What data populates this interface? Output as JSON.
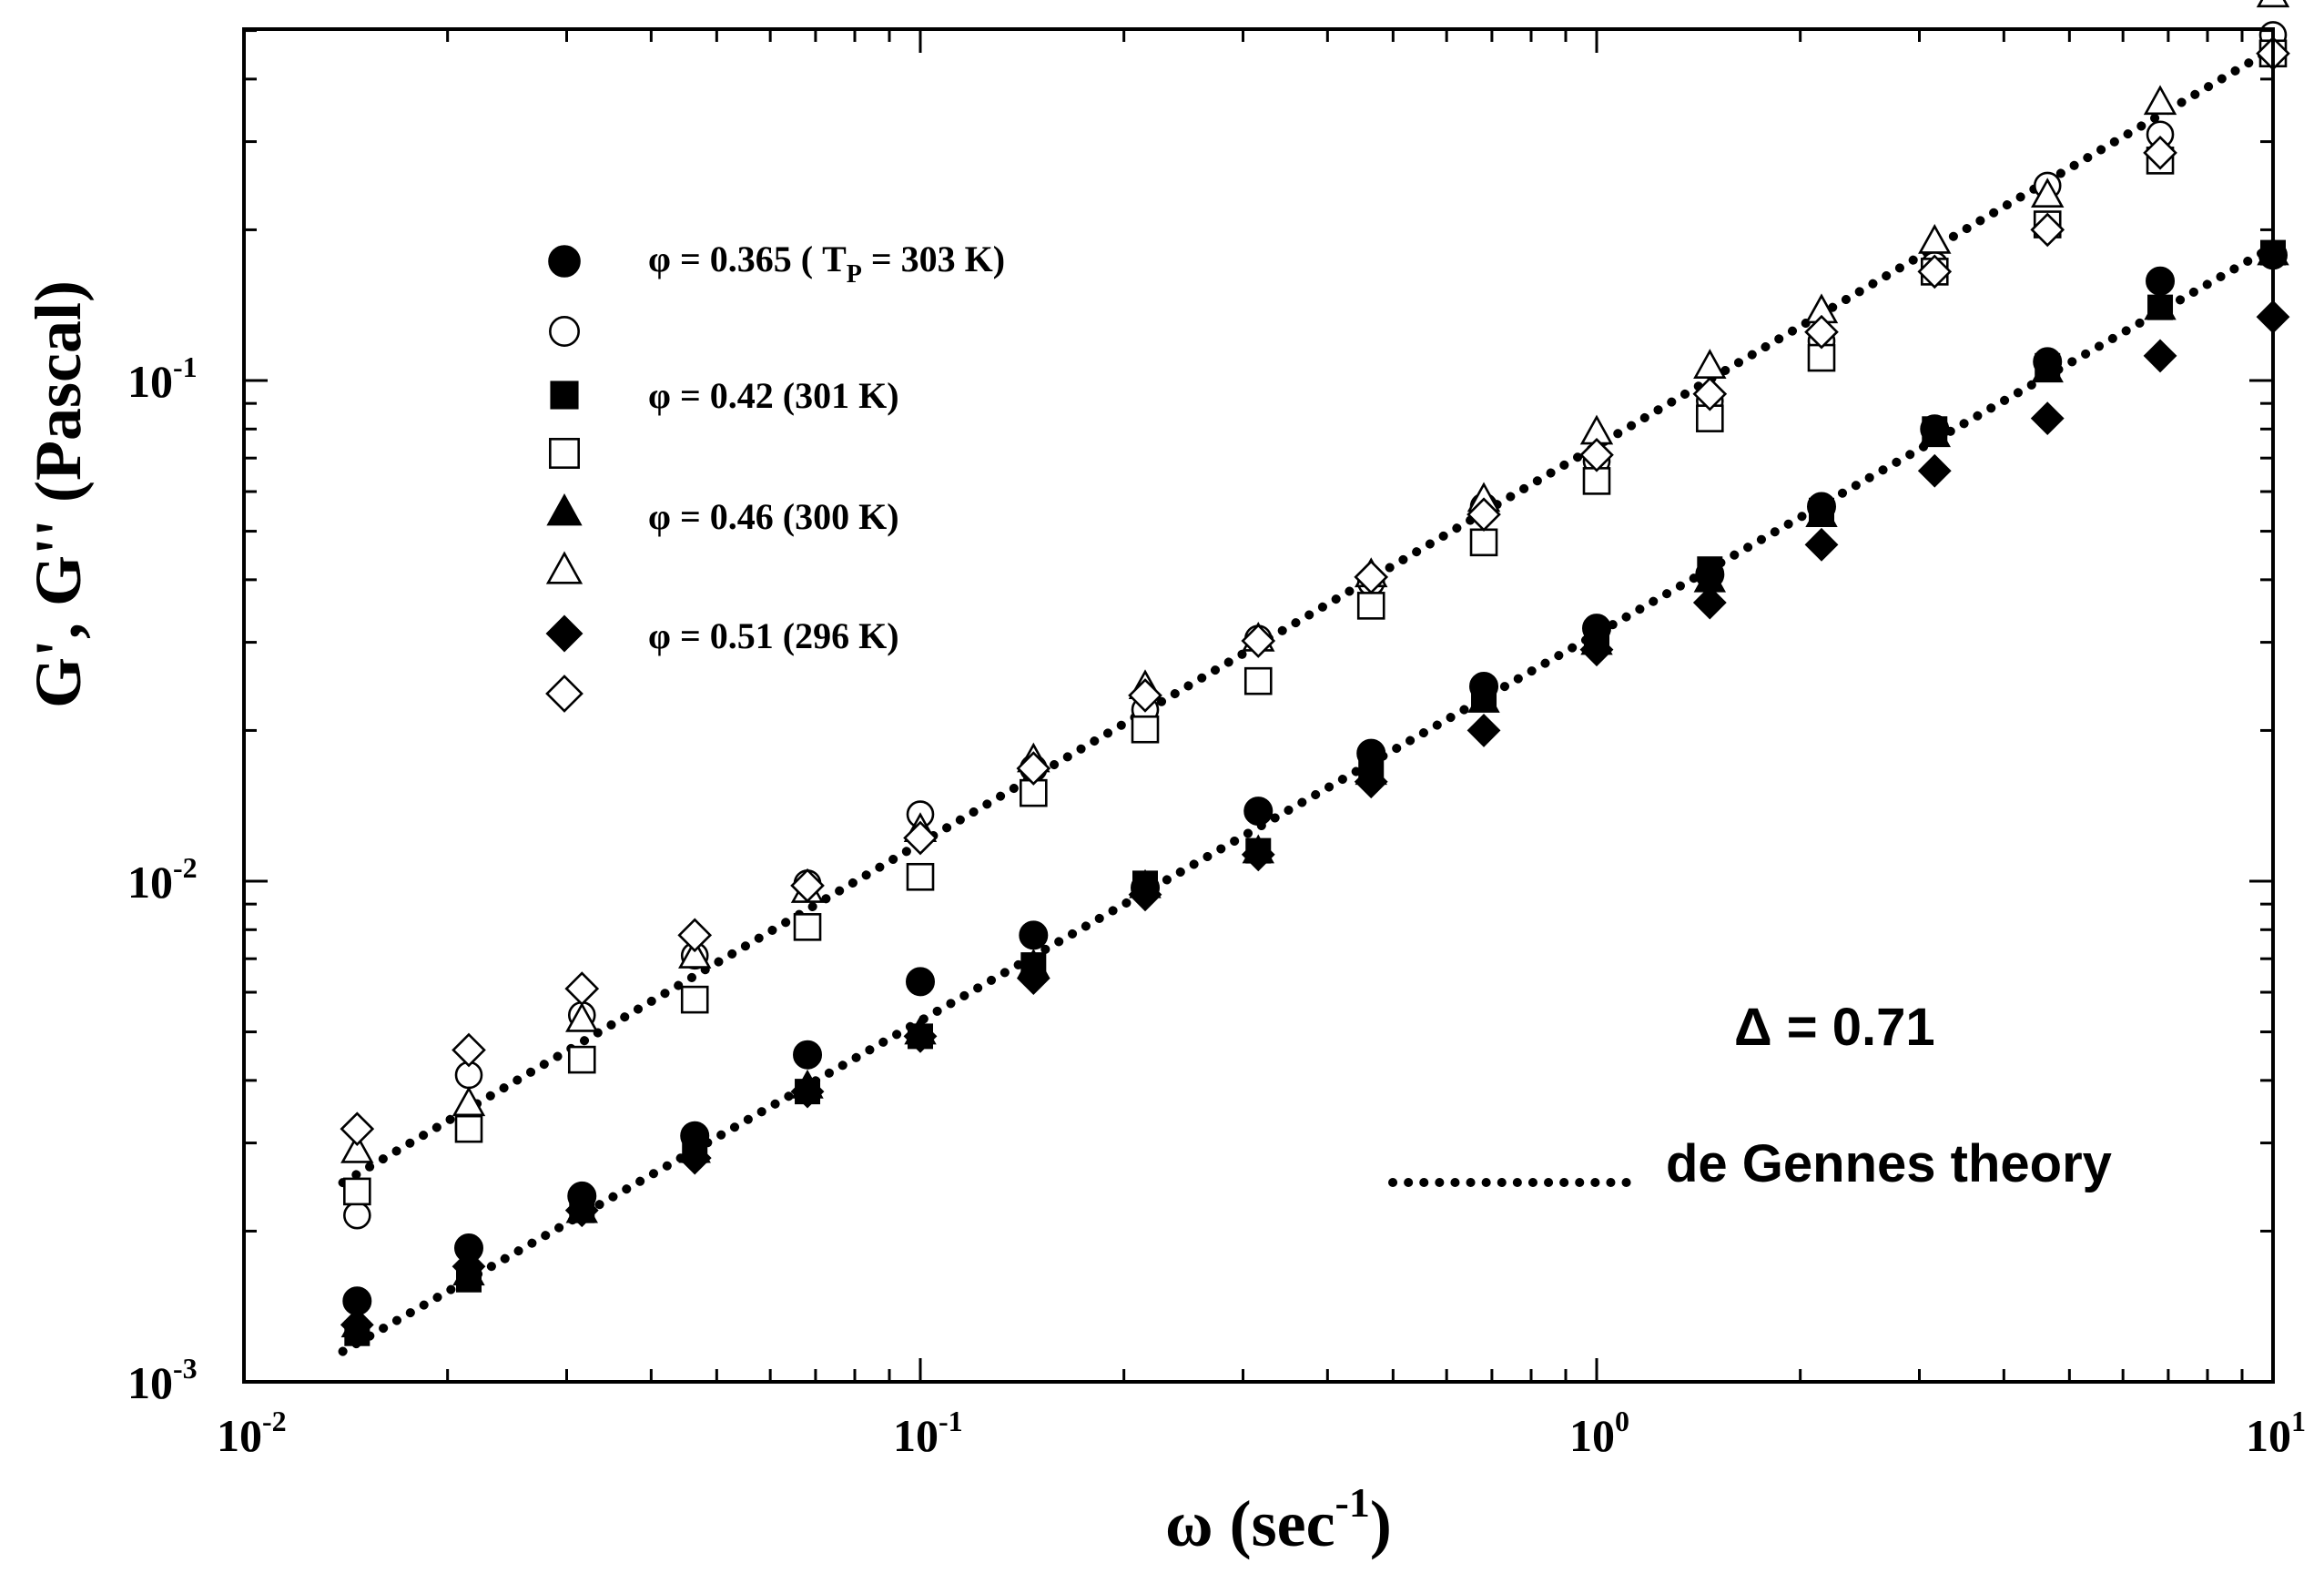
{
  "chart_data": {
    "type": "scatter",
    "title": "",
    "xlabel": {
      "main": "ω (sec",
      "sup": "-1",
      "end": ")"
    },
    "ylabel": "G', G'' (Pascal)",
    "xscale": "log",
    "yscale": "log",
    "xlim": [
      0.01,
      10
    ],
    "ylim": [
      0.001,
      0.5
    ],
    "grid": false,
    "x_ticks": [
      {
        "value": 0.01,
        "base": "10",
        "exp": "-2"
      },
      {
        "value": 0.1,
        "base": "10",
        "exp": "-1"
      },
      {
        "value": 1,
        "base": "10",
        "exp": "0"
      },
      {
        "value": 10,
        "base": "10",
        "exp": "1"
      }
    ],
    "y_ticks": [
      {
        "value": 0.001,
        "base": "10",
        "exp": "-3"
      },
      {
        "value": 0.01,
        "base": "10",
        "exp": "-2"
      },
      {
        "value": 0.1,
        "base": "10",
        "exp": "-1"
      }
    ],
    "x": [
      0.0147,
      0.0215,
      0.0316,
      0.0464,
      0.0681,
      0.1,
      0.147,
      0.215,
      0.316,
      0.464,
      0.681,
      1.0,
      1.47,
      2.15,
      3.16,
      4.64,
      6.81,
      10.0
    ],
    "series": [
      {
        "name": "φ = 0.365 ( T_P = 303 K)",
        "legend": {
          "pre": "φ = 0.365 ( T",
          "sub": "P",
          "post": " = 303 K)"
        },
        "marker": "circle",
        "filled": true,
        "values": [
          0.00145,
          0.00185,
          0.00235,
          0.0031,
          0.0045,
          0.0063,
          0.0078,
          0.0097,
          0.0138,
          0.018,
          0.0245,
          0.032,
          0.041,
          0.056,
          0.08,
          0.109,
          0.158,
          0.178
        ]
      },
      {
        "name": "",
        "marker": "circle",
        "filled": false,
        "values": [
          0.00215,
          0.0041,
          0.0054,
          0.0071,
          0.0099,
          0.0136,
          0.0168,
          0.022,
          0.0305,
          0.0395,
          0.056,
          0.069,
          0.091,
          0.12,
          0.17,
          0.245,
          0.31,
          0.49
        ]
      },
      {
        "name": "φ = 0.42 (301 K)",
        "legend": {
          "pre": "φ = 0.42 (301 K)"
        },
        "marker": "square",
        "filled": true,
        "values": [
          0.00125,
          0.0016,
          0.0022,
          0.0029,
          0.0038,
          0.0049,
          0.0068,
          0.0099,
          0.0115,
          0.017,
          0.0235,
          0.031,
          0.042,
          0.055,
          0.08,
          0.107,
          0.14,
          0.18
        ]
      },
      {
        "name": "",
        "marker": "square",
        "filled": false,
        "values": [
          0.0024,
          0.0032,
          0.0044,
          0.0058,
          0.0081,
          0.0102,
          0.015,
          0.0201,
          0.0251,
          0.0355,
          0.0475,
          0.063,
          0.084,
          0.111,
          0.165,
          0.205,
          0.275,
          0.45
        ]
      },
      {
        "name": "φ = 0.46 (300 K)",
        "legend": {
          "pre": "φ = 0.46 (300 K)"
        },
        "marker": "triangle",
        "filled": true,
        "values": [
          0.0013,
          0.00165,
          0.0022,
          0.0029,
          0.0039,
          0.005,
          0.0068,
          0.0098,
          0.0115,
          0.0165,
          0.023,
          0.03,
          0.04,
          0.054,
          0.078,
          0.105,
          0.14,
          0.18
        ]
      },
      {
        "name": "",
        "marker": "triangle",
        "filled": false,
        "values": [
          0.0029,
          0.0036,
          0.0053,
          0.0071,
          0.0096,
          0.0127,
          0.0175,
          0.0245,
          0.0305,
          0.041,
          0.058,
          0.079,
          0.107,
          0.138,
          0.19,
          0.235,
          0.36,
          0.59
        ]
      },
      {
        "name": "φ = 0.51 (296 K)",
        "legend": {
          "pre": "φ = 0.51 (296 K)"
        },
        "marker": "diamond",
        "filled": true,
        "values": [
          0.0013,
          0.0017,
          0.0022,
          0.0028,
          0.0038,
          0.0049,
          0.0064,
          0.0094,
          0.0113,
          0.0158,
          0.02,
          0.029,
          0.036,
          0.047,
          0.066,
          0.084,
          0.112,
          0.134
        ]
      },
      {
        "name": "",
        "marker": "diamond",
        "filled": false,
        "values": [
          0.0032,
          0.0046,
          0.0061,
          0.0078,
          0.0098,
          0.0122,
          0.0168,
          0.0235,
          0.0302,
          0.0405,
          0.054,
          0.071,
          0.094,
          0.125,
          0.165,
          0.2,
          0.285,
          0.45
        ]
      }
    ],
    "theory_lines": [
      {
        "name": "de Gennes theory (G'')",
        "x": [
          0.014,
          10
        ],
        "y": [
          0.0025,
          0.46
        ]
      },
      {
        "name": "de Gennes theory (G')",
        "x": [
          0.014,
          10
        ],
        "y": [
          0.00115,
          0.185
        ]
      }
    ],
    "annotations": {
      "delta": "Δ = 0.71",
      "theory_label": "de Gennes theory"
    }
  }
}
